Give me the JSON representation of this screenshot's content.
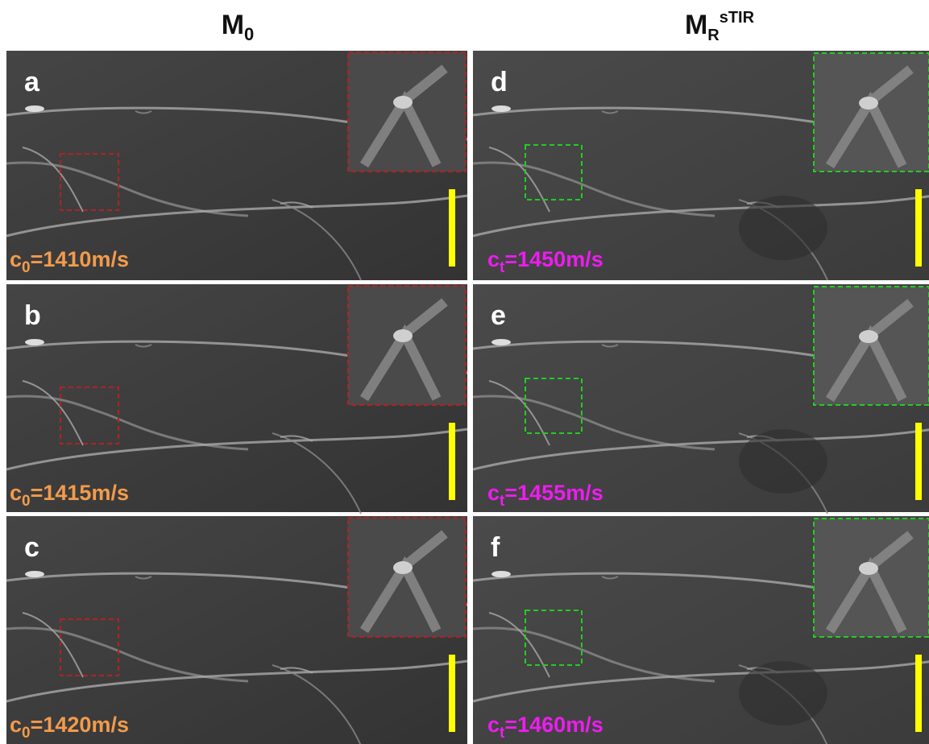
{
  "header": {
    "columns": [
      {
        "base": "M",
        "sub": "0"
      },
      {
        "base": "M",
        "sub": "R",
        "sup": "sTIR"
      }
    ]
  },
  "panels": [
    {
      "letter": "a",
      "label": {
        "base": "c",
        "sub": "0",
        "rest": "=1410m/s"
      }
    },
    {
      "letter": "b",
      "label": {
        "base": "c",
        "sub": "0",
        "rest": "=1415m/s"
      }
    },
    {
      "letter": "c",
      "label": {
        "base": "c",
        "sub": "0",
        "rest": "=1420m/s"
      }
    },
    {
      "letter": "d",
      "label": {
        "base": "c",
        "sub": "t",
        "rest": "=1450m/s"
      }
    },
    {
      "letter": "e",
      "label": {
        "base": "c",
        "sub": "t",
        "rest": "=1455m/s"
      }
    },
    {
      "letter": "f",
      "label": {
        "base": "c",
        "sub": "t",
        "rest": "=1460m/s"
      }
    }
  ]
}
